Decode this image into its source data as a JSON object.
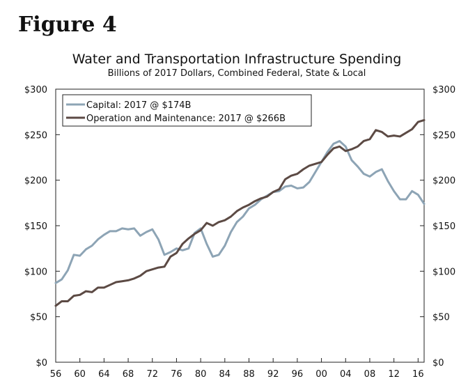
{
  "figure_label": "Figure 4",
  "chart_data": {
    "type": "line",
    "title": "Water and Transportation Infrastructure Spending",
    "subtitle": "Billions of 2017 Dollars, Combined Federal, State & Local",
    "xlabel": "",
    "ylabel": "",
    "xlim": [
      1956,
      2017
    ],
    "ylim": [
      0,
      300
    ],
    "y_ticks": [
      0,
      50,
      100,
      150,
      200,
      250,
      300
    ],
    "y_tick_labels": [
      "$0",
      "$50",
      "$100",
      "$150",
      "$200",
      "$250",
      "$300"
    ],
    "x_ticks": [
      1956,
      1960,
      1964,
      1968,
      1972,
      1976,
      1980,
      1984,
      1988,
      1992,
      1996,
      2000,
      2004,
      2008,
      2012,
      2016
    ],
    "x_tick_labels": [
      "56",
      "60",
      "64",
      "68",
      "72",
      "76",
      "80",
      "84",
      "88",
      "92",
      "96",
      "00",
      "04",
      "08",
      "12",
      "16"
    ],
    "legend_position": "top-left",
    "grid": false,
    "colors": {
      "capital": "#8da4b5",
      "om": "#5c4a44"
    },
    "series": [
      {
        "key": "capital",
        "name": "Capital: 2017 @ $174B",
        "x": [
          1956,
          1957,
          1958,
          1959,
          1960,
          1961,
          1962,
          1963,
          1964,
          1965,
          1966,
          1967,
          1968,
          1969,
          1970,
          1971,
          1972,
          1973,
          1974,
          1975,
          1976,
          1977,
          1978,
          1979,
          1980,
          1981,
          1982,
          1983,
          1984,
          1985,
          1986,
          1987,
          1988,
          1989,
          1990,
          1991,
          1992,
          1993,
          1994,
          1995,
          1996,
          1997,
          1998,
          1999,
          2000,
          2001,
          2002,
          2003,
          2004,
          2005,
          2006,
          2007,
          2008,
          2009,
          2010,
          2011,
          2012,
          2013,
          2014,
          2015,
          2016,
          2017
        ],
        "values": [
          87,
          91,
          101,
          118,
          117,
          124,
          128,
          135,
          140,
          144,
          144,
          147,
          146,
          147,
          139,
          143,
          146,
          135,
          118,
          121,
          125,
          123,
          125,
          142,
          147,
          130,
          116,
          118,
          128,
          143,
          154,
          160,
          169,
          173,
          179,
          183,
          187,
          188,
          193,
          194,
          191,
          192,
          198,
          209,
          220,
          231,
          240,
          243,
          237,
          222,
          215,
          207,
          204,
          209,
          212,
          199,
          188,
          179,
          179,
          188,
          184,
          174
        ]
      },
      {
        "key": "om",
        "name": "Operation and Maintenance: 2017 @ $266B",
        "x": [
          1956,
          1957,
          1958,
          1959,
          1960,
          1961,
          1962,
          1963,
          1964,
          1965,
          1966,
          1967,
          1968,
          1969,
          1970,
          1971,
          1972,
          1973,
          1974,
          1975,
          1976,
          1977,
          1978,
          1979,
          1980,
          1981,
          1982,
          1983,
          1984,
          1985,
          1986,
          1987,
          1988,
          1989,
          1990,
          1991,
          1992,
          1993,
          1994,
          1995,
          1996,
          1997,
          1998,
          1999,
          2000,
          2001,
          2002,
          2003,
          2004,
          2005,
          2006,
          2007,
          2008,
          2009,
          2010,
          2011,
          2012,
          2013,
          2014,
          2015,
          2016,
          2017
        ],
        "values": [
          62,
          67,
          67,
          73,
          74,
          78,
          77,
          82,
          82,
          85,
          88,
          89,
          90,
          92,
          95,
          100,
          102,
          104,
          105,
          116,
          120,
          130,
          136,
          141,
          145,
          153,
          150,
          154,
          156,
          160,
          166,
          170,
          173,
          177,
          180,
          182,
          187,
          190,
          201,
          205,
          207,
          212,
          216,
          218,
          220,
          228,
          235,
          237,
          232,
          234,
          237,
          243,
          245,
          255,
          253,
          248,
          249,
          248,
          252,
          256,
          264,
          266
        ]
      }
    ]
  }
}
